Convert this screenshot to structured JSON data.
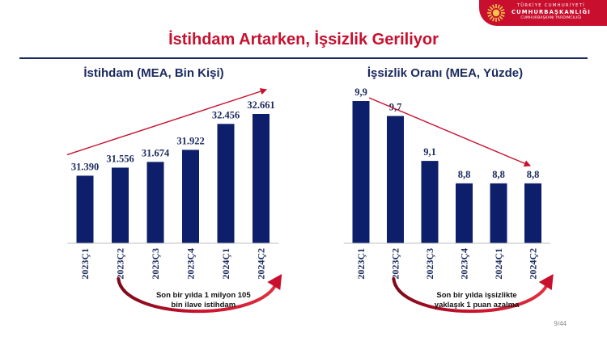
{
  "header": {
    "logo_line1": "TÜRKİYE CUMHURİYETİ",
    "logo_line2": "CUMHURBAŞKANLIĞI",
    "logo_line3": "CUMHURBAŞKANI YARDIMCILIĞI"
  },
  "title": "İstihdam Artarken, İşsizlik Geriliyor",
  "page_number": "9/44",
  "colors": {
    "bar": "#0d1f6b",
    "accent": "#c8102e",
    "navy_text": "#1a2a5e"
  },
  "chart_data": [
    {
      "type": "bar",
      "title": "İstihdam (MEA, Bin Kişi)",
      "categories": [
        "2023Ç1",
        "2023Ç2",
        "2023Ç3",
        "2023Ç4",
        "2024Ç1",
        "2024Ç2"
      ],
      "values": [
        31390,
        31556,
        31674,
        31922,
        32456,
        32661
      ],
      "value_labels": [
        "31.390",
        "31.556",
        "31.674",
        "31.922",
        "32.456",
        "32.661"
      ],
      "trend": "up",
      "note": "Son bir yılda 1 milyon 105 bin ilave istihdam",
      "note_lines": [
        "Son bir yılda 1 milyon 105",
        "bin ilave istihdam"
      ]
    },
    {
      "type": "bar",
      "title": "İşsizlik Oranı (MEA, Yüzde)",
      "categories": [
        "2023Ç1",
        "2023Ç2",
        "2023Ç3",
        "2023Ç4",
        "2024Ç1",
        "2024Ç2"
      ],
      "values": [
        9.9,
        9.7,
        9.1,
        8.8,
        8.8,
        8.8
      ],
      "value_labels": [
        "9,9",
        "9,7",
        "9,1",
        "8,8",
        "8,8",
        "8,8"
      ],
      "trend": "down",
      "note": "Son bir yılda işsizlikte yaklaşık 1 puan azalma",
      "note_lines": [
        "Son bir yılda işsizlikte",
        "yaklaşık 1 puan azalma"
      ]
    }
  ]
}
